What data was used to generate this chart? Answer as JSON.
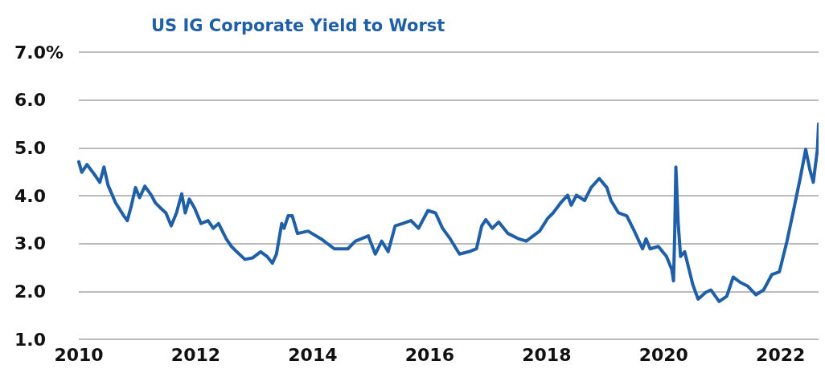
{
  "chart_data": {
    "type": "line",
    "title": "US IG Corporate Yield to Worst",
    "xlim": [
      2010,
      2022.65
    ],
    "xticks": [
      2010,
      2012,
      2014,
      2016,
      2018,
      2020,
      2022
    ],
    "ylim": [
      1,
      7
    ],
    "yticks": [
      {
        "value": 1,
        "label": "1.0"
      },
      {
        "value": 2,
        "label": "2.0"
      },
      {
        "value": 3,
        "label": "3.0"
      },
      {
        "value": 4,
        "label": "4.0"
      },
      {
        "value": 5,
        "label": "5.0"
      },
      {
        "value": 6,
        "label": "6.0"
      },
      {
        "value": 7,
        "label": "7.0%"
      }
    ],
    "grid": "y",
    "marker": "none",
    "line_style": "solid",
    "series": [
      {
        "color": "#1f5fa8",
        "x": [
          2010.0,
          2010.05,
          2010.14,
          2010.27,
          2010.36,
          2010.43,
          2010.5,
          2010.63,
          2010.77,
          2010.83,
          2010.9,
          2010.97,
          2011.04,
          2011.13,
          2011.24,
          2011.31,
          2011.4,
          2011.49,
          2011.58,
          2011.67,
          2011.76,
          2011.82,
          2011.89,
          2011.98,
          2012.09,
          2012.21,
          2012.3,
          2012.39,
          2012.52,
          2012.61,
          2012.7,
          2012.84,
          2012.97,
          2013.11,
          2013.22,
          2013.31,
          2013.38,
          2013.47,
          2013.51,
          2013.58,
          2013.65,
          2013.74,
          2013.92,
          2014.14,
          2014.37,
          2014.6,
          2014.73,
          2014.95,
          2015.07,
          2015.18,
          2015.29,
          2015.41,
          2015.54,
          2015.68,
          2015.81,
          2015.97,
          2016.1,
          2016.22,
          2016.35,
          2016.51,
          2016.67,
          2016.8,
          2016.89,
          2016.96,
          2017.07,
          2017.18,
          2017.34,
          2017.52,
          2017.65,
          2017.88,
          2018.02,
          2018.11,
          2018.24,
          2018.36,
          2018.42,
          2018.51,
          2018.65,
          2018.76,
          2018.9,
          2019.03,
          2019.1,
          2019.23,
          2019.37,
          2019.5,
          2019.64,
          2019.7,
          2019.77,
          2019.91,
          2020.05,
          2020.14,
          2020.17,
          2020.19,
          2020.21,
          2020.25,
          2020.29,
          2020.36,
          2020.5,
          2020.59,
          2020.72,
          2020.81,
          2020.95,
          2021.08,
          2021.19,
          2021.31,
          2021.44,
          2021.58,
          2021.71,
          2021.85,
          2021.98,
          2022.11,
          2022.23,
          2022.34,
          2022.43,
          2022.5,
          2022.56,
          2022.63,
          2022.65
        ],
        "values": [
          4.71,
          4.49,
          4.65,
          4.44,
          4.28,
          4.6,
          4.22,
          3.85,
          3.58,
          3.48,
          3.8,
          4.17,
          3.96,
          4.2,
          4.01,
          3.85,
          3.74,
          3.64,
          3.37,
          3.64,
          4.04,
          3.64,
          3.93,
          3.74,
          3.42,
          3.48,
          3.32,
          3.42,
          3.1,
          2.94,
          2.83,
          2.67,
          2.7,
          2.83,
          2.73,
          2.59,
          2.78,
          3.42,
          3.32,
          3.58,
          3.58,
          3.21,
          3.26,
          3.1,
          2.89,
          2.89,
          3.05,
          3.16,
          2.78,
          3.05,
          2.83,
          3.37,
          3.42,
          3.48,
          3.32,
          3.69,
          3.64,
          3.32,
          3.1,
          2.78,
          2.83,
          2.89,
          3.37,
          3.5,
          3.32,
          3.45,
          3.21,
          3.1,
          3.05,
          3.26,
          3.53,
          3.64,
          3.85,
          4.01,
          3.8,
          4.01,
          3.9,
          4.17,
          4.36,
          4.17,
          3.9,
          3.64,
          3.58,
          3.26,
          2.89,
          3.1,
          2.89,
          2.94,
          2.73,
          2.46,
          2.22,
          3.21,
          4.6,
          3.42,
          2.73,
          2.83,
          2.14,
          1.84,
          1.98,
          2.03,
          1.79,
          1.9,
          2.3,
          2.19,
          2.11,
          1.93,
          2.03,
          2.35,
          2.41,
          3.05,
          3.74,
          4.39,
          4.97,
          4.55,
          4.28,
          4.97,
          5.5
        ]
      }
    ]
  }
}
